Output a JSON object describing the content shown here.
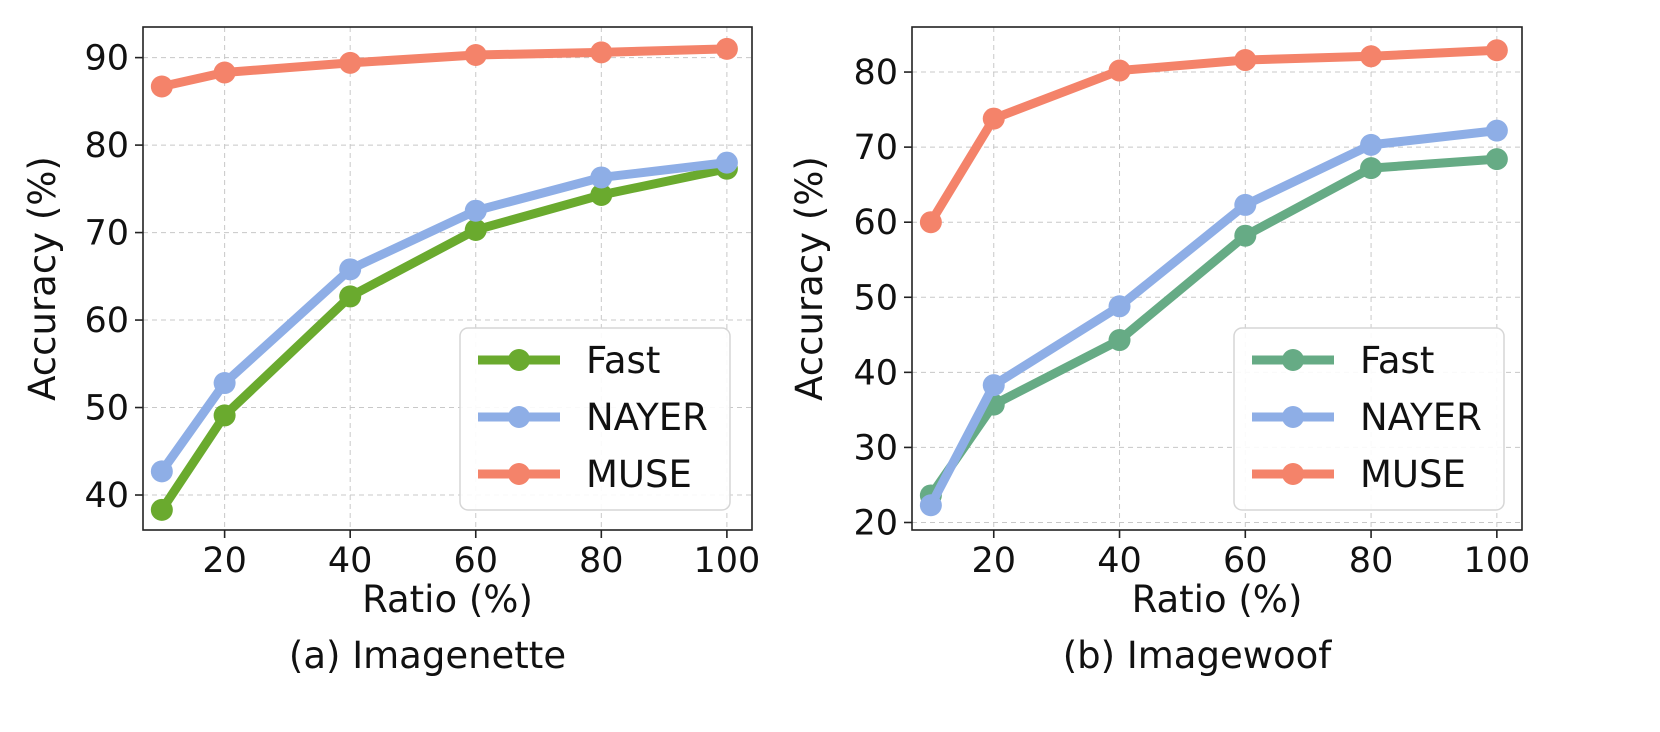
{
  "chart_data": [
    {
      "type": "line",
      "caption": "(a) Imagenette",
      "xlabel": "Ratio (%)",
      "ylabel": "Accuracy (%)",
      "x": [
        10,
        20,
        40,
        60,
        80,
        100
      ],
      "xticks": [
        "20",
        "40",
        "60",
        "80",
        "100"
      ],
      "xtick_values": [
        20,
        40,
        60,
        80,
        100
      ],
      "yticks": [
        "40",
        "50",
        "60",
        "70",
        "80",
        "90"
      ],
      "ytick_values": [
        40,
        50,
        60,
        70,
        80,
        90
      ],
      "xlim": [
        7,
        104
      ],
      "ylim": [
        36,
        93.5
      ],
      "grid": true,
      "legend_position": "lower-right",
      "series": [
        {
          "name": "Fast",
          "color": "#6aaa2e",
          "values": [
            38.3,
            49.1,
            62.7,
            70.3,
            74.3,
            77.3
          ]
        },
        {
          "name": "NAYER",
          "color": "#8eaee6",
          "values": [
            42.7,
            52.8,
            65.8,
            72.5,
            76.3,
            78.0
          ]
        },
        {
          "name": "MUSE",
          "color": "#f4836a",
          "values": [
            86.7,
            88.3,
            89.4,
            90.3,
            90.6,
            91.0
          ]
        }
      ]
    },
    {
      "type": "line",
      "caption": "(b) Imagewoof",
      "xlabel": "Ratio (%)",
      "ylabel": "Accuracy (%)",
      "x": [
        10,
        20,
        40,
        60,
        80,
        100
      ],
      "xticks": [
        "20",
        "40",
        "60",
        "80",
        "100"
      ],
      "xtick_values": [
        20,
        40,
        60,
        80,
        100
      ],
      "yticks": [
        "20",
        "30",
        "40",
        "50",
        "60",
        "70",
        "80"
      ],
      "ytick_values": [
        20,
        30,
        40,
        50,
        60,
        70,
        80
      ],
      "xlim": [
        7,
        104
      ],
      "ylim": [
        19,
        86
      ],
      "grid": true,
      "legend_position": "lower-right",
      "series": [
        {
          "name": "Fast",
          "color": "#66ab85",
          "values": [
            23.6,
            35.7,
            44.3,
            58.2,
            67.2,
            68.4
          ]
        },
        {
          "name": "NAYER",
          "color": "#8eaee6",
          "values": [
            22.3,
            38.3,
            48.8,
            62.3,
            70.3,
            72.2
          ]
        },
        {
          "name": "MUSE",
          "color": "#f4836a",
          "values": [
            60.0,
            73.8,
            80.2,
            81.6,
            82.1,
            82.9
          ]
        }
      ]
    }
  ]
}
